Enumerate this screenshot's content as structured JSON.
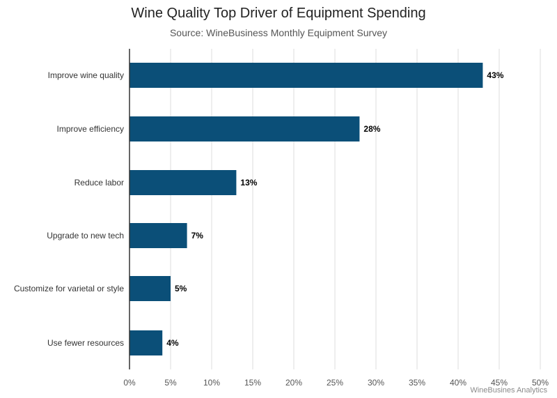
{
  "chart_data": {
    "type": "bar",
    "orientation": "horizontal",
    "title": "Wine Quality Top Driver of Equipment Spending",
    "subtitle": "Source: WineBusiness Monthly Equipment Survey",
    "credit": "WineBusines Analytics",
    "categories": [
      "Improve wine quality",
      "Improve efficiency",
      "Reduce labor",
      "Upgrade to new tech",
      "Customize for varietal or style",
      "Use fewer resources"
    ],
    "values": [
      43,
      28,
      13,
      7,
      5,
      4
    ],
    "value_labels": [
      "43%",
      "28%",
      "13%",
      "7%",
      "5%",
      "4%"
    ],
    "xlim": [
      0,
      50
    ],
    "xticks": [
      0,
      5,
      10,
      15,
      20,
      25,
      30,
      35,
      40,
      45,
      50
    ],
    "xtick_labels": [
      "0%",
      "5%",
      "10%",
      "15%",
      "20%",
      "25%",
      "30%",
      "35%",
      "40%",
      "45%",
      "50%"
    ],
    "grid": true,
    "bar_color": "#0b4f78",
    "grid_color": "#dddddd"
  }
}
